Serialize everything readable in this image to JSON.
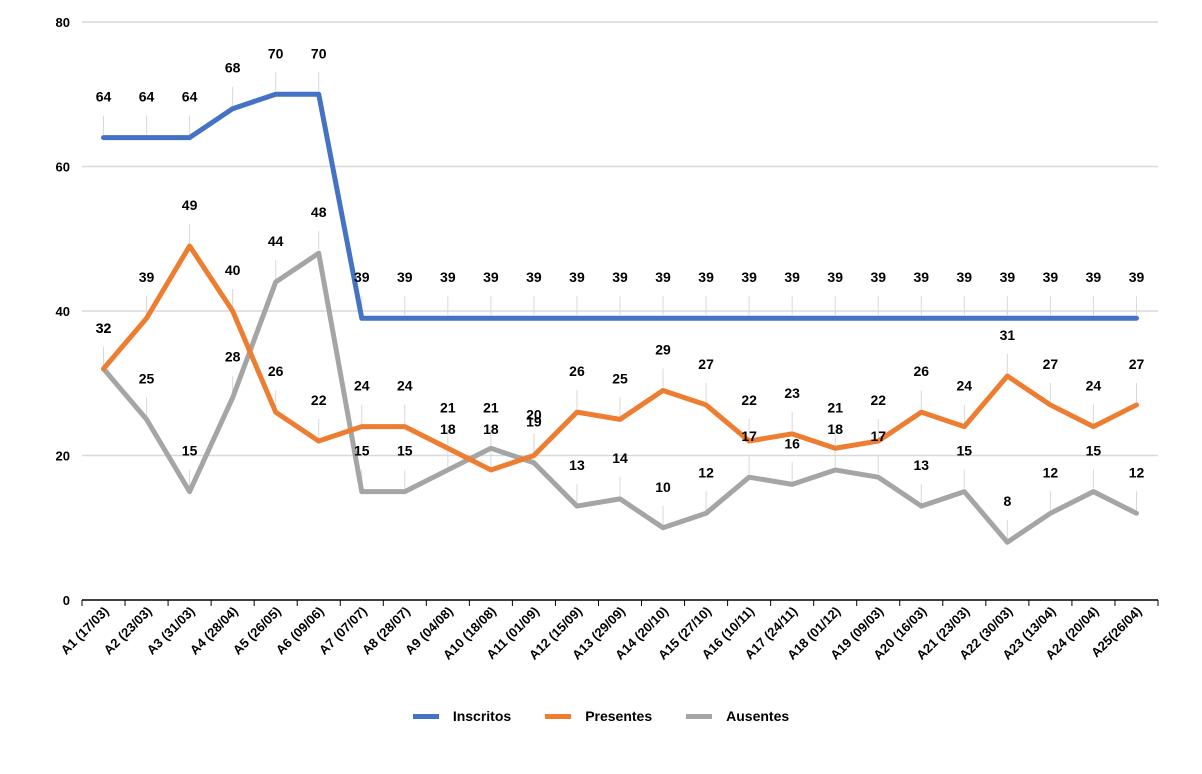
{
  "chart_data": {
    "type": "line",
    "title": "",
    "xlabel": "",
    "ylabel": "",
    "ylim": [
      0,
      80
    ],
    "yticks": [
      0,
      20,
      40,
      60,
      80
    ],
    "grid": true,
    "legend_position": "bottom",
    "categories": [
      "A1 (17/03)",
      "A2 (23/03)",
      "A3 (31/03)",
      "A4 (28/04)",
      "A5 (26/05)",
      "A6 (09/06)",
      "A7 (07/07)",
      "A8 (28/07)",
      "A9 (04/08)",
      "A10 (18/08)",
      "A11 (01/09)",
      "A12 (15/09)",
      "A13 (29/09)",
      "A14 (20/10)",
      "A15 (27/10)",
      "A16 (10/11)",
      "A17 (24/11)",
      "A18 (01/12)",
      "A19 (09/03)",
      "A20 (16/03)",
      "A21 (23/03)",
      "A22 (30/03)",
      "A23 (13/04)",
      "A24 (20/04)",
      "A25(26/04)"
    ],
    "series": [
      {
        "name": "Inscritos",
        "color": "#4472C4",
        "values": [
          64,
          64,
          64,
          68,
          70,
          70,
          39,
          39,
          39,
          39,
          39,
          39,
          39,
          39,
          39,
          39,
          39,
          39,
          39,
          39,
          39,
          39,
          39,
          39,
          39
        ]
      },
      {
        "name": "Presentes",
        "color": "#ED7D31",
        "values": [
          32,
          39,
          49,
          40,
          26,
          22,
          24,
          24,
          21,
          18,
          20,
          26,
          25,
          29,
          27,
          22,
          23,
          21,
          22,
          26,
          24,
          31,
          27,
          24,
          27
        ]
      },
      {
        "name": "Ausentes",
        "color": "#A5A5A5",
        "values": [
          32,
          25,
          15,
          28,
          44,
          48,
          15,
          15,
          18,
          21,
          19,
          13,
          14,
          10,
          12,
          17,
          16,
          18,
          17,
          13,
          15,
          8,
          12,
          15,
          12
        ]
      }
    ]
  }
}
